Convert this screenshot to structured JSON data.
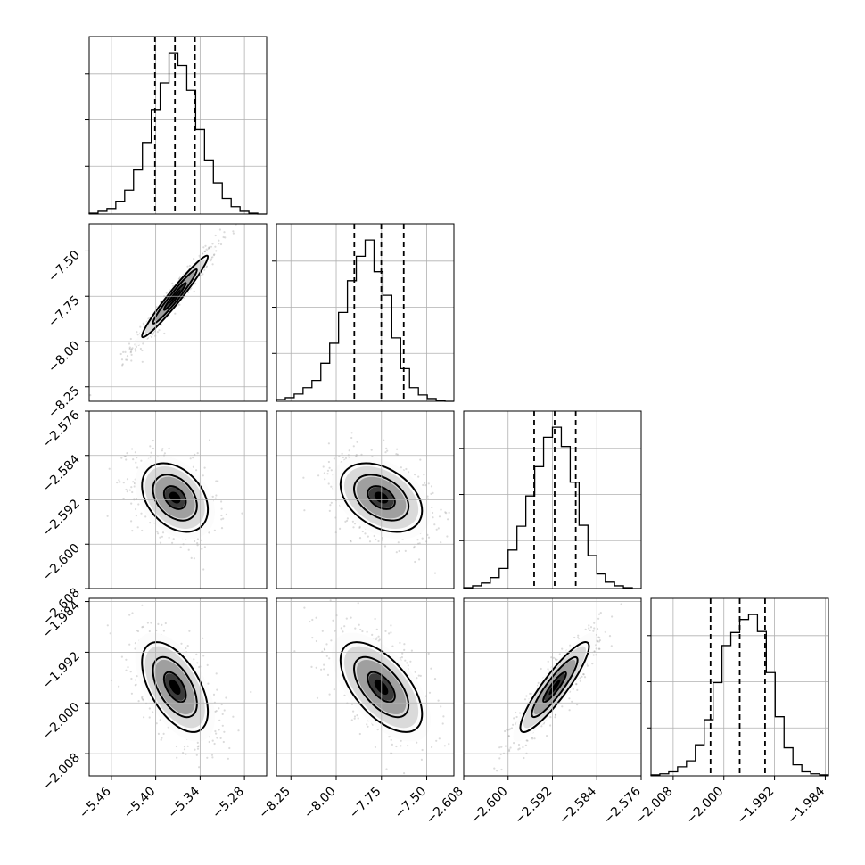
{
  "chart_data": {
    "type": "corner",
    "grid": true,
    "parameters": [
      {
        "index": 0,
        "range": [
          -5.49,
          -5.25
        ],
        "ticks": [
          -5.46,
          -5.4,
          -5.34,
          -5.28
        ],
        "tick_labels": [
          "−5.46",
          "−5.40",
          "−5.34",
          "−5.28"
        ],
        "quantiles": [
          -5.401,
          -5.374,
          -5.347
        ],
        "hist_bin_edges": [
          -5.49,
          -5.478,
          -5.466,
          -5.454,
          -5.442,
          -5.43,
          -5.418,
          -5.406,
          -5.394,
          -5.382,
          -5.37,
          -5.358,
          -5.346,
          -5.334,
          -5.322,
          -5.31,
          -5.298,
          -5.286,
          -5.274,
          -5.262,
          -5.25
        ],
        "hist_counts": [
          1,
          3,
          6,
          14,
          26,
          48,
          78,
          114,
          143,
          176,
          162,
          135,
          92,
          59,
          34,
          17,
          8,
          3,
          1,
          0
        ]
      },
      {
        "index": 1,
        "range": [
          -8.33,
          -7.35
        ],
        "ticks": [
          -8.25,
          -8.0,
          -7.75,
          -7.5
        ],
        "tick_labels": [
          "−8.25",
          "−8.00",
          "−7.75",
          "−7.50"
        ],
        "quantiles": [
          -7.9,
          -7.751,
          -7.627
        ],
        "hist_bin_edges": [
          -8.33,
          -8.281,
          -8.232,
          -8.183,
          -8.134,
          -8.085,
          -8.036,
          -7.987,
          -7.938,
          -7.889,
          -7.84,
          -7.791,
          -7.742,
          -7.693,
          -7.644,
          -7.595,
          -7.546,
          -7.497,
          -7.448,
          -7.399,
          -7.35
        ],
        "hist_counts": [
          2,
          4,
          8,
          15,
          23,
          42,
          64,
          98,
          133,
          160,
          178,
          143,
          117,
          70,
          36,
          15,
          7,
          3,
          1,
          0
        ]
      },
      {
        "index": 2,
        "range": [
          -2.608,
          -2.576
        ],
        "ticks": [
          -2.608,
          -2.6,
          -2.592,
          -2.584,
          -2.576
        ],
        "tick_labels": [
          "−2.608",
          "−2.600",
          "−2.592",
          "−2.584",
          "−2.576"
        ],
        "quantiles": [
          -2.5953,
          -2.5916,
          -2.5878
        ],
        "hist_bin_edges": [
          -2.608,
          -2.6064,
          -2.6048,
          -2.6032,
          -2.6016,
          -2.6,
          -2.5984,
          -2.5968,
          -2.5952,
          -2.5936,
          -2.592,
          -2.5904,
          -2.5888,
          -2.5872,
          -2.5856,
          -2.584,
          -2.5824,
          -2.5808,
          -2.5792,
          -2.5776,
          -2.576
        ],
        "hist_counts": [
          1,
          3,
          6,
          12,
          22,
          42,
          68,
          101,
          133,
          165,
          176,
          155,
          116,
          69,
          36,
          16,
          7,
          3,
          1,
          0
        ]
      },
      {
        "index": 3,
        "range": [
          -2.0115,
          -1.9835
        ],
        "ticks": [
          -2.008,
          -2.0,
          -1.992,
          -1.984
        ],
        "tick_labels": [
          "−2.008",
          "−2.000",
          "−1.992",
          "−1.984"
        ],
        "quantiles": [
          -2.0021,
          -1.9975,
          -1.9935
        ],
        "hist_bin_edges": [
          -2.0115,
          -2.0101,
          -2.0087,
          -2.0073,
          -2.0059,
          -2.0045,
          -2.0031,
          -2.0017,
          -2.0003,
          -1.9989,
          -1.9975,
          -1.9961,
          -1.9947,
          -1.9933,
          -1.9919,
          -1.9905,
          -1.9891,
          -1.9877,
          -1.9863,
          -1.9849,
          -1.9835
        ],
        "hist_counts": [
          1,
          2,
          4,
          9,
          15,
          31,
          56,
          93,
          130,
          143,
          156,
          161,
          144,
          103,
          59,
          28,
          11,
          4,
          2,
          1
        ]
      }
    ],
    "correlations": [
      {
        "x": 0,
        "y": 1,
        "rho": 0.97
      },
      {
        "x": 0,
        "y": 2,
        "rho": -0.35
      },
      {
        "x": 1,
        "y": 2,
        "rho": -0.38
      },
      {
        "x": 0,
        "y": 3,
        "rho": -0.55
      },
      {
        "x": 1,
        "y": 3,
        "rho": -0.6
      },
      {
        "x": 2,
        "y": 3,
        "rho": 0.9
      }
    ],
    "contour_levels_sigma": [
      0.5,
      1.0,
      1.5,
      2.0
    ],
    "colors": {
      "line": "#000000",
      "grid": "#b0b0b0",
      "points": "#7f7f7f"
    }
  }
}
